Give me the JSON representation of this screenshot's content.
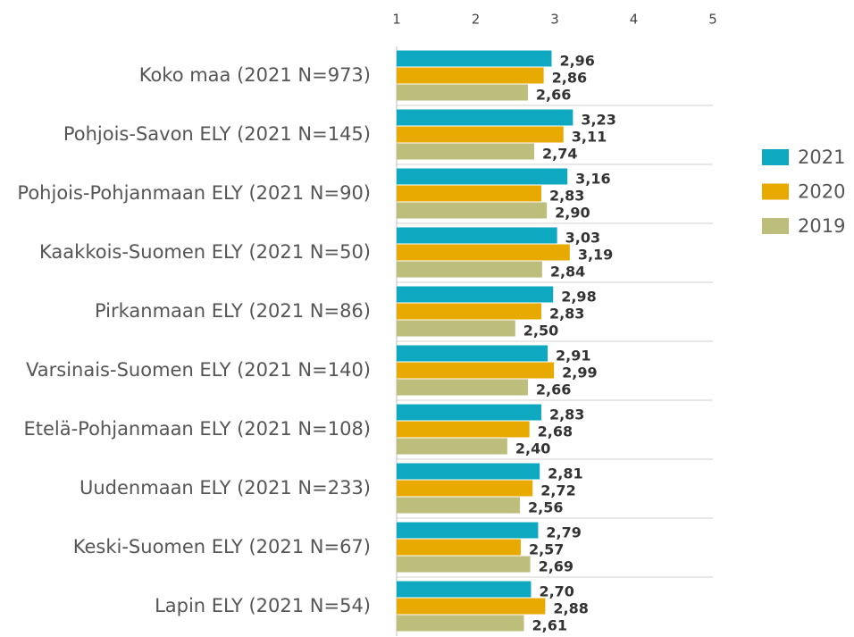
{
  "chart_data": {
    "type": "bar",
    "orientation": "horizontal",
    "categories": [
      "Koko maa (2021 N=973)",
      "Pohjois-Savon ELY (2021 N=145)",
      "Pohjois-Pohjanmaan ELY (2021 N=90)",
      "Kaakkois-Suomen ELY (2021 N=50)",
      "Pirkanmaan ELY (2021 N=86)",
      "Varsinais-Suomen ELY (2021 N=140)",
      "Etelä-Pohjanmaan ELY (2021 N=108)",
      "Uudenmaan ELY (2021 N=233)",
      "Keski-Suomen ELY (2021 N=67)",
      "Lapin ELY (2021 N=54)"
    ],
    "series": [
      {
        "name": "2021",
        "color": "#0fa8c1",
        "values": [
          2.96,
          3.23,
          3.16,
          3.03,
          2.98,
          2.91,
          2.83,
          2.81,
          2.79,
          2.7
        ],
        "value_labels": [
          "2,96",
          "3,23",
          "3,16",
          "3,03",
          "2,98",
          "2,91",
          "2,83",
          "2,81",
          "2,79",
          "2,70"
        ]
      },
      {
        "name": "2020",
        "color": "#e8a900",
        "values": [
          2.86,
          3.11,
          2.83,
          3.19,
          2.83,
          2.99,
          2.68,
          2.72,
          2.57,
          2.88
        ],
        "value_labels": [
          "2,86",
          "3,11",
          "2,83",
          "3,19",
          "2,83",
          "2,99",
          "2,68",
          "2,72",
          "2,57",
          "2,88"
        ]
      },
      {
        "name": "2019",
        "color": "#bdbd7c",
        "values": [
          2.66,
          2.74,
          2.9,
          2.84,
          2.5,
          2.66,
          2.4,
          2.56,
          2.69,
          2.61
        ],
        "value_labels": [
          "2,66",
          "2,74",
          "2,90",
          "2,84",
          "2,50",
          "2,66",
          "2,40",
          "2,56",
          "2,69",
          "2,61"
        ]
      }
    ],
    "xlim": [
      1,
      5
    ],
    "xticks": [
      1,
      2,
      3,
      4,
      5
    ],
    "legend": "right"
  }
}
